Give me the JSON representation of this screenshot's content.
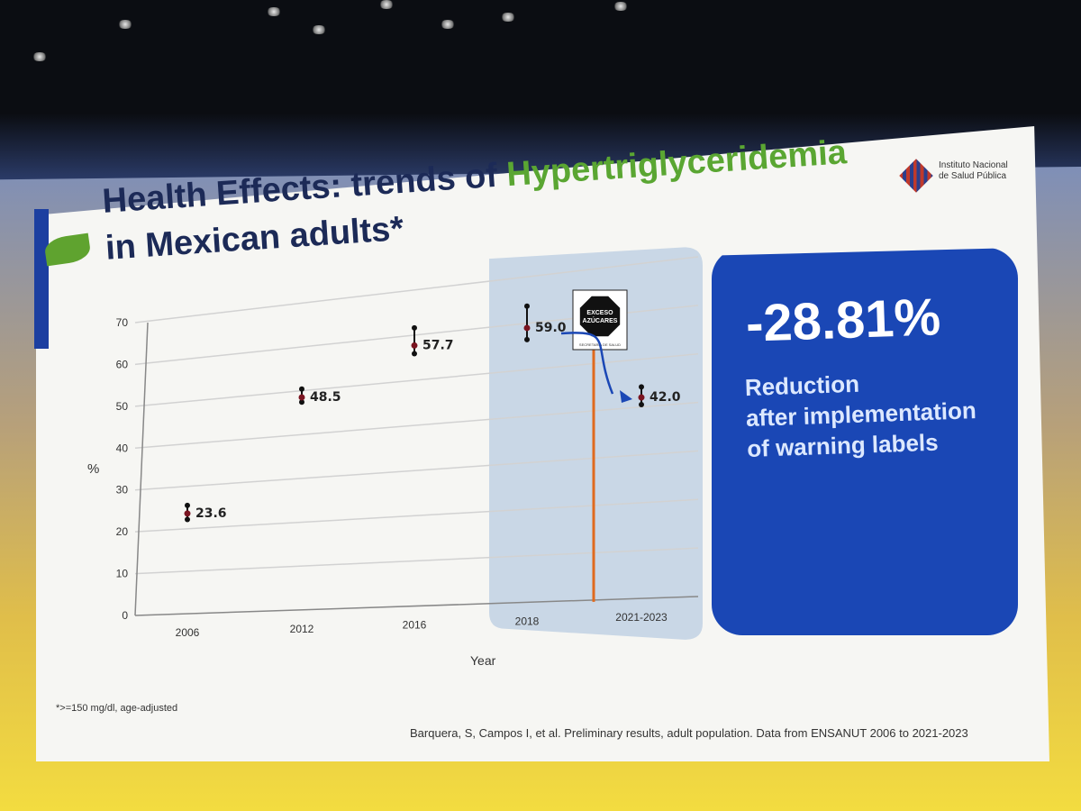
{
  "slide": {
    "title_prefix": "Health Effects: trends of ",
    "title_highlight": "Hypertriglyceridemia",
    "title_line2": "in Mexican adults*",
    "logo_line1": "Instituto Nacional",
    "logo_line2": "de Salud Pública",
    "label_box_line1": "EXCESO",
    "label_box_line2": "AZÚCARES",
    "label_box_line3": "SECRETARÍA DE SALUD",
    "badge_value": "-28.81%",
    "badge_line1": "Reduction",
    "badge_line2": "after implementation",
    "badge_line3": "of warning labels",
    "footnote": "*>=150 mg/dl, age-adjusted",
    "source": "Barquera, S, Campos I, et al. Preliminary results, adult population. Data from ENSANUT 2006 to 2021-2023"
  },
  "chart_data": {
    "type": "scatter",
    "title": "",
    "xlabel": "Year",
    "ylabel": "%",
    "ylim": [
      0,
      70
    ],
    "yticks": [
      0,
      10,
      20,
      30,
      40,
      50,
      60,
      70
    ],
    "categories": [
      "2006",
      "2012",
      "2016",
      "2018",
      "2021-2023"
    ],
    "values": [
      23.6,
      48.5,
      57.7,
      59.0,
      42.0
    ],
    "value_labels": [
      "23.6",
      "48.5",
      "57.7",
      "59.0",
      "42.0"
    ],
    "ci_low": [
      22.2,
      47.4,
      55.9,
      56.5,
      40.5
    ],
    "ci_high": [
      25.5,
      50.4,
      61.6,
      63.7,
      44.2
    ],
    "highlight_categories": [
      "2018",
      "2021-2023"
    ],
    "grid": true,
    "colors": {
      "point": "#7a1420",
      "bar": "#111111",
      "arrow": "#1a47b5",
      "marker_line": "#e06a1e",
      "highlight": "#c9d7e6"
    }
  }
}
